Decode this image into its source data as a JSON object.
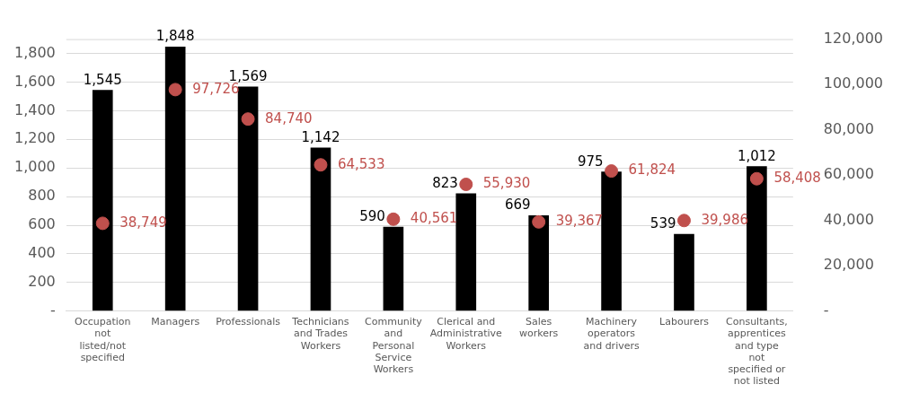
{
  "chart_data": {
    "type": "bar",
    "categories": [
      "Occupation not listed/not specified",
      "Managers",
      "Professionals",
      "Technicians and Trades Workers",
      "Community and Personal Service Workers",
      "Clerical and Administrative Workers",
      "Sales workers",
      "Machinery operators and drivers",
      "Labourers",
      "Consultants, apprentices and type not specified or not listed"
    ],
    "series": [
      {
        "color": "#000000",
        "values": [
          1545,
          1848,
          1569,
          1142,
          590,
          823,
          669,
          975,
          539,
          1012
        ],
        "value_labels": [
          "1,545",
          "1,848",
          "1,569",
          "1,142",
          "590",
          "823",
          "669",
          "975",
          "539",
          "1,012"
        ]
      },
      {
        "type": "scatter",
        "axis": "y2",
        "color": "#c0504d",
        "values": [
          38749,
          97726,
          84740,
          64533,
          40561,
          55930,
          39367,
          61824,
          39986,
          58408
        ],
        "value_labels": [
          "38,749",
          "97,726",
          "84,740",
          "64,533",
          "40,561",
          "55,930",
          "39,367",
          "61,824",
          "39,986",
          "58,408"
        ]
      }
    ],
    "ylim": [
      0,
      1900
    ],
    "yticks": [
      {
        "value": 0,
        "label": "-"
      },
      200,
      400,
      600,
      800,
      {
        "value": 1000,
        "label": "1,000"
      },
      {
        "value": 1200,
        "label": "1,200"
      },
      {
        "value": 1400,
        "label": "1,400"
      },
      {
        "value": 1600,
        "label": "1,600"
      },
      {
        "value": 1800,
        "label": "1,800"
      }
    ],
    "y2lim": [
      0,
      120000
    ],
    "y2ticks": [
      {
        "value": 0,
        "label": "-"
      },
      {
        "value": 20000,
        "label": "20,000"
      },
      {
        "value": 40000,
        "label": "40,000"
      },
      {
        "value": 60000,
        "label": "60,000"
      },
      {
        "value": 80000,
        "label": "80,000"
      },
      {
        "value": 100000,
        "label": "100,000"
      },
      {
        "value": 120000,
        "label": "120,000"
      }
    ],
    "grid": "y",
    "marker": "circle",
    "legend": false
  }
}
